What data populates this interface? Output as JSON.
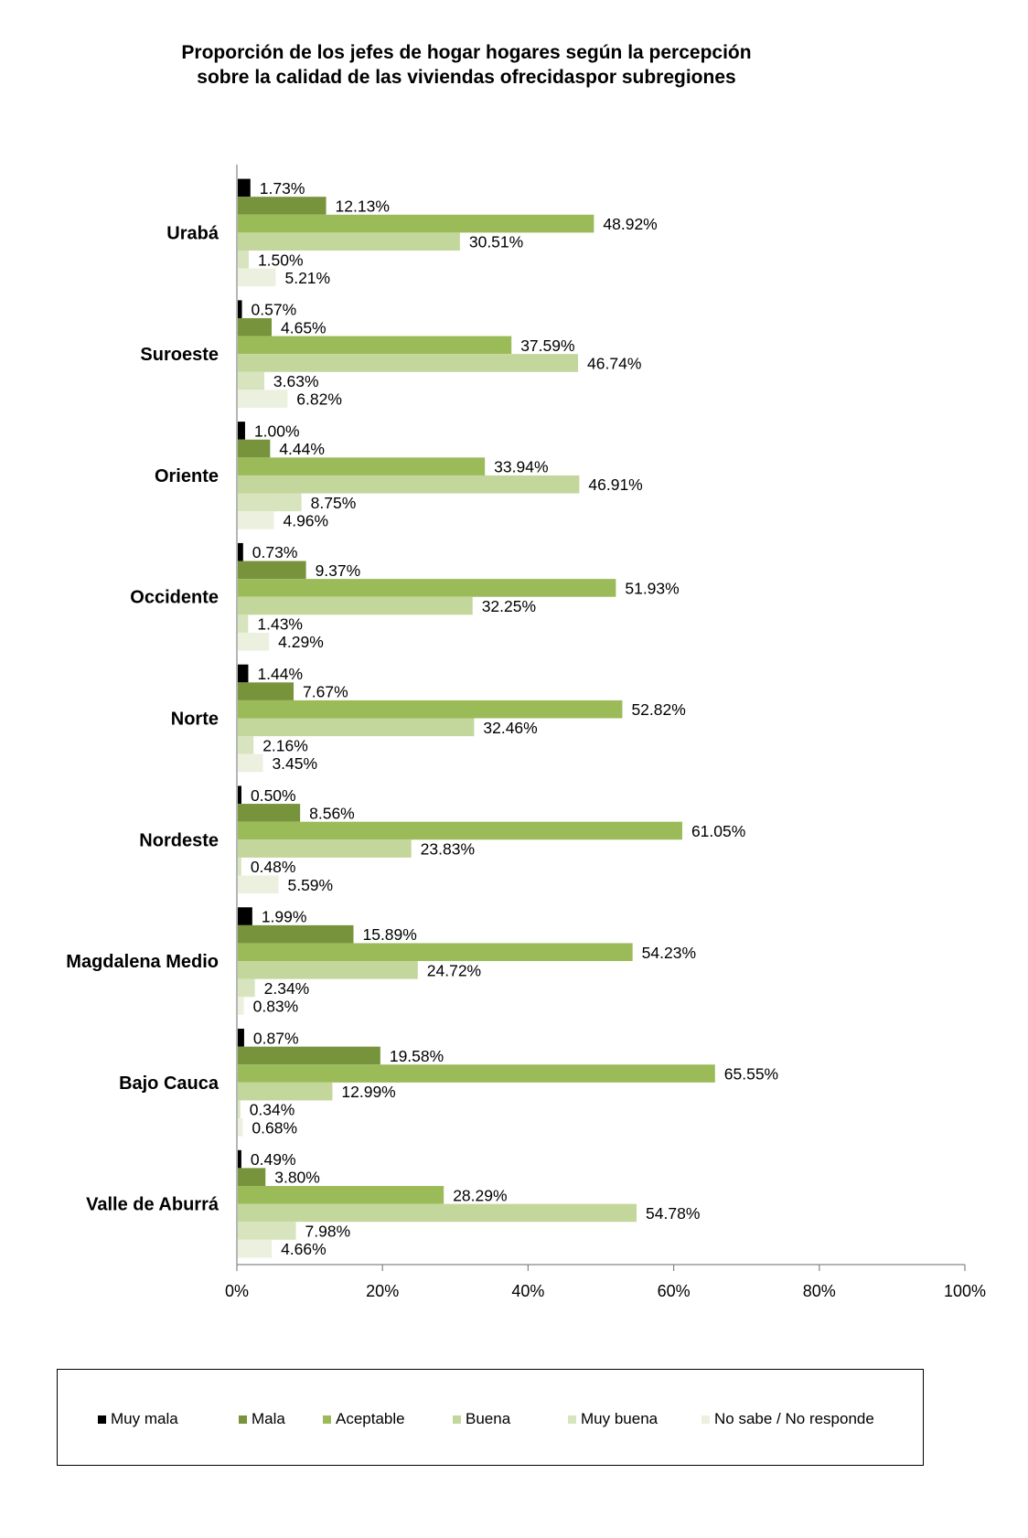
{
  "title": {
    "line1": "Proporción de los jefes de hogar hogares según la percepción",
    "line2": "sobre la calidad de las viviendas ofrecidaspor subregiones"
  },
  "chart_data": {
    "type": "bar",
    "orientation": "horizontal",
    "categories": [
      "Urabá",
      "Suroeste",
      "Oriente",
      "Occidente",
      "Norte",
      "Nordeste",
      "Magdalena Medio",
      "Bajo Cauca",
      "Valle de Aburrá"
    ],
    "series": [
      {
        "name": "Muy mala",
        "color": "#000000",
        "values": [
          1.73,
          0.57,
          1.0,
          0.73,
          1.44,
          0.5,
          1.99,
          0.87,
          0.49
        ],
        "labels": [
          "1.73%",
          "0.57%",
          "1.00%",
          "0.73%",
          "1.44%",
          "0.50%",
          "1.99%",
          "0.87%",
          "0.49%"
        ]
      },
      {
        "name": "Mala",
        "color": "#77933c",
        "values": [
          12.13,
          4.65,
          4.44,
          9.37,
          7.67,
          8.56,
          15.89,
          19.58,
          3.8
        ],
        "labels": [
          "12.13%",
          "4.65%",
          "4.44%",
          "9.37%",
          "7.67%",
          "8.56%",
          "15.89%",
          "19.58%",
          "3.80%"
        ]
      },
      {
        "name": "Aceptable",
        "color": "#9bbb59",
        "values": [
          48.92,
          37.59,
          33.94,
          51.93,
          52.82,
          61.05,
          54.23,
          65.55,
          28.29
        ],
        "labels": [
          "48.92%",
          "37.59%",
          "33.94%",
          "51.93%",
          "52.82%",
          "61.05%",
          "54.23%",
          "65.55%",
          "28.29%"
        ]
      },
      {
        "name": "Buena",
        "color": "#c3d69b",
        "values": [
          30.51,
          46.74,
          46.91,
          32.25,
          32.46,
          23.83,
          24.72,
          12.99,
          54.78
        ],
        "labels": [
          "30.51%",
          "46.74%",
          "46.91%",
          "32.25%",
          "32.46%",
          "23.83%",
          "24.72%",
          "12.99%",
          "54.78%"
        ]
      },
      {
        "name": "Muy buena",
        "color": "#d7e4bd",
        "values": [
          1.5,
          3.63,
          8.75,
          1.43,
          2.16,
          0.48,
          2.34,
          0.34,
          7.98
        ],
        "labels": [
          "1.50%",
          "3.63%",
          "8.75%",
          "1.43%",
          "2.16%",
          "0.48%",
          "2.34%",
          "0.34%",
          "7.98%"
        ]
      },
      {
        "name": "No sabe / No responde",
        "color": "#ebf1de",
        "values": [
          5.21,
          6.82,
          4.96,
          4.29,
          3.45,
          5.59,
          0.83,
          0.68,
          4.66
        ],
        "labels": [
          "5.21%",
          "6.82%",
          "4.96%",
          "4.29%",
          "3.45%",
          "5.59%",
          "0.83%",
          "0.68%",
          "4.66%"
        ]
      }
    ],
    "xlim": [
      0,
      100
    ],
    "xticks": [
      0,
      20,
      40,
      60,
      80,
      100
    ],
    "xtick_labels": [
      "0%",
      "20%",
      "40%",
      "60%",
      "80%",
      "100%"
    ],
    "grid": false,
    "legend": "bottom"
  }
}
